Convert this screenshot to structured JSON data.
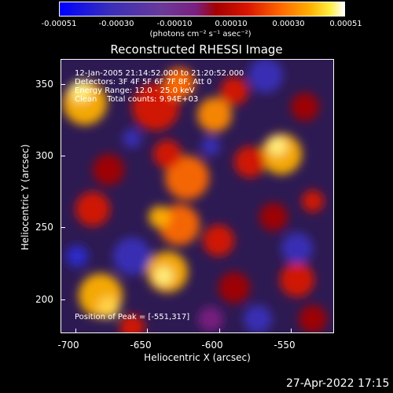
{
  "colorbar": {
    "ticks": [
      "-0.00051",
      "-0.00030",
      "-0.00010",
      "0.00010",
      "0.00030",
      "0.00051"
    ],
    "units": "(photons cm⁻² s⁻¹ asec⁻²)"
  },
  "title": "Reconstructed RHESSI Image",
  "overlay": {
    "line1": "12-Jan-2005 21:14:52.000 to 21:20:52.000",
    "line2": "Detectors: 3F 4F 5F 6F 7F 8F, Att 0",
    "line3": "Energy Range: 12.0 - 25.0 keV",
    "line4": "Clean    Total counts: 9.94E+03",
    "peak": "Position of Peak = [-551,317]"
  },
  "axes": {
    "xlabel": "Heliocentric X (arcsec)",
    "ylabel": "Heliocentric Y (arcsec)",
    "xticks": [
      "-700",
      "-650",
      "-600",
      "-550"
    ],
    "yticks": [
      "350",
      "300",
      "250",
      "200"
    ]
  },
  "timestamp": "27-Apr-2022 17:15",
  "colors": {
    "low": "#0000ff",
    "mid": "#6a3a98",
    "high": "#ff6a00",
    "peak": "#ffffff"
  }
}
